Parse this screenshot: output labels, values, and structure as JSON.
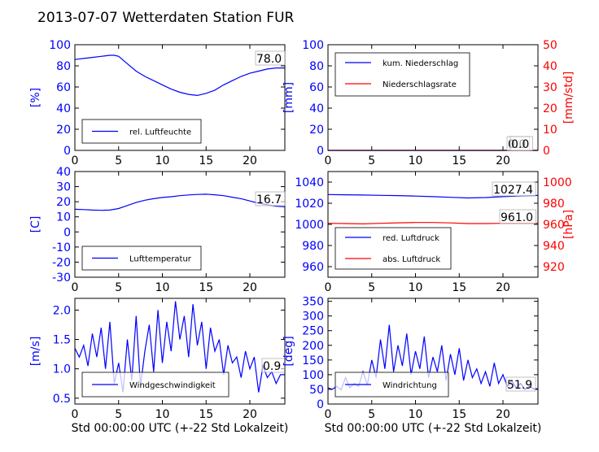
{
  "page_title": "2013-07-07 Wetterdaten Station FUR",
  "colors": {
    "primary": "#0000ff",
    "secondary": "#ff0000",
    "axis": "#000000"
  },
  "chart_data": [
    {
      "id": "humidity",
      "type": "line",
      "ylabel": "[%]",
      "xlabel": "",
      "xlim": [
        0,
        24
      ],
      "ylim": [
        0,
        100
      ],
      "yticks": [
        0,
        20,
        40,
        60,
        80,
        100
      ],
      "xticks": [
        0,
        5,
        10,
        15,
        20
      ],
      "grid": false,
      "legend_position": "bottom-left",
      "annotations": [
        "78.0"
      ],
      "series": [
        {
          "name": "rel. Luftfeuchte",
          "axis": "left",
          "color": "#0000ff",
          "x": [
            0,
            1,
            2,
            3,
            4,
            4.5,
            5,
            6,
            7,
            8,
            9,
            10,
            11,
            12,
            13,
            14,
            15,
            16,
            17,
            18,
            19,
            20,
            21,
            22,
            23,
            24
          ],
          "y": [
            86,
            87,
            88,
            89,
            90,
            90,
            89,
            82,
            75,
            70,
            66,
            62,
            58,
            55,
            53,
            52,
            54,
            57,
            62,
            66,
            70,
            73,
            75,
            77,
            78,
            78
          ]
        }
      ]
    },
    {
      "id": "precip",
      "type": "line",
      "ylabel": "[mm]",
      "ylabel_right": "[mm/std]",
      "xlabel": "",
      "xlim": [
        0,
        24
      ],
      "ylim": [
        0,
        100
      ],
      "ylim_right": [
        0,
        50
      ],
      "yticks": [
        0,
        20,
        40,
        60,
        80,
        100
      ],
      "yticks_right": [
        0,
        10,
        20,
        30,
        40,
        50
      ],
      "xticks": [
        0,
        5,
        10,
        15,
        20
      ],
      "grid": false,
      "legend_position": "top-left",
      "annotations": [
        "0.0",
        "0.0"
      ],
      "series": [
        {
          "name": "kum. Niederschlag",
          "axis": "left",
          "color": "#0000ff",
          "x": [
            0,
            24
          ],
          "y": [
            0,
            0
          ]
        },
        {
          "name": "Niederschlagsrate",
          "axis": "right",
          "color": "#ff0000",
          "x": [
            0,
            24
          ],
          "y": [
            0,
            0
          ]
        }
      ]
    },
    {
      "id": "temp",
      "type": "line",
      "ylabel": "[C]",
      "xlabel": "",
      "xlim": [
        0,
        24
      ],
      "ylim": [
        -30,
        40
      ],
      "yticks": [
        -30,
        -20,
        -10,
        0,
        10,
        20,
        30,
        40
      ],
      "xticks": [
        0,
        5,
        10,
        15,
        20
      ],
      "grid": false,
      "legend_position": "bottom-left",
      "annotations": [
        "16.7"
      ],
      "series": [
        {
          "name": "Lufttemperatur",
          "axis": "left",
          "color": "#0000ff",
          "x": [
            0,
            1,
            2,
            3,
            4,
            5,
            6,
            7,
            8,
            9,
            10,
            11,
            12,
            13,
            14,
            15,
            16,
            17,
            18,
            19,
            20,
            21,
            22,
            23,
            24
          ],
          "y": [
            15,
            14.8,
            14.5,
            14.3,
            14.5,
            15.5,
            17.5,
            19.5,
            21,
            22,
            22.8,
            23.3,
            24,
            24.5,
            24.8,
            25,
            24.6,
            24,
            23,
            22,
            20.5,
            19,
            18,
            17,
            16.7
          ]
        }
      ]
    },
    {
      "id": "pressure",
      "type": "line",
      "ylabel": "",
      "ylabel_right": "[hPa]",
      "xlabel": "",
      "xlim": [
        0,
        24
      ],
      "ylim": [
        950,
        1050
      ],
      "ylim_right": [
        910,
        1010
      ],
      "yticks": [
        960,
        980,
        1000,
        1020,
        1040
      ],
      "yticks_right": [
        920,
        940,
        960,
        980,
        1000
      ],
      "xticks": [
        0,
        5,
        10,
        15,
        20
      ],
      "grid": false,
      "legend_position": "bottom-left",
      "annotations": [
        "1027.4",
        "961.0"
      ],
      "series": [
        {
          "name": "red. Luftdruck",
          "axis": "left",
          "color": "#0000ff",
          "x": [
            0,
            2,
            4,
            6,
            8,
            10,
            12,
            14,
            16,
            18,
            20,
            22,
            24
          ],
          "y": [
            1028.2,
            1028,
            1027.8,
            1027.5,
            1027.2,
            1026.8,
            1026.2,
            1025.6,
            1025,
            1025.4,
            1026.2,
            1026.9,
            1027.4
          ]
        },
        {
          "name": "abs. Luftdruck",
          "axis": "right",
          "color": "#ff0000",
          "x": [
            0,
            2,
            4,
            6,
            8,
            10,
            12,
            14,
            16,
            18,
            20,
            22,
            24
          ],
          "y": [
            961,
            960.8,
            960.5,
            961,
            961.5,
            961.8,
            961.8,
            961.4,
            960.8,
            960.8,
            961,
            961,
            961
          ]
        }
      ]
    },
    {
      "id": "windspeed",
      "type": "line",
      "ylabel": "[m/s]",
      "xlabel": "Std 00:00:00 UTC (+-22 Std Lokalzeit)",
      "xlim": [
        0,
        24
      ],
      "ylim": [
        0.4,
        2.2
      ],
      "yticks": [
        0.5,
        1.0,
        1.5,
        2.0
      ],
      "ytick_labels": [
        "0.5",
        "1.0",
        "1.5",
        "2.0"
      ],
      "xticks": [
        0,
        5,
        10,
        15,
        20
      ],
      "grid": false,
      "legend_position": "bottom-left",
      "annotations": [
        "0.9"
      ],
      "series": [
        {
          "name": "Windgeschwindigkeit",
          "axis": "left",
          "color": "#0000ff",
          "x": [
            0,
            0.5,
            1,
            1.5,
            2,
            2.5,
            3,
            3.5,
            4,
            4.5,
            5,
            5.5,
            6,
            6.5,
            7,
            7.5,
            8,
            8.5,
            9,
            9.5,
            10,
            10.5,
            11,
            11.5,
            12,
            12.5,
            13,
            13.5,
            14,
            14.5,
            15,
            15.5,
            16,
            16.5,
            17,
            17.5,
            18,
            18.5,
            19,
            19.5,
            20,
            20.5,
            21,
            21.5,
            22,
            22.5,
            23,
            23.5,
            24
          ],
          "y": [
            1.35,
            1.2,
            1.4,
            1.05,
            1.6,
            1.2,
            1.7,
            1.0,
            1.8,
            0.75,
            1.1,
            0.6,
            1.5,
            0.8,
            1.9,
            0.7,
            1.3,
            1.75,
            0.95,
            2.0,
            1.1,
            1.8,
            1.3,
            2.15,
            1.5,
            1.9,
            1.2,
            2.1,
            1.4,
            1.8,
            1.0,
            1.7,
            1.3,
            1.5,
            0.9,
            1.4,
            1.1,
            1.2,
            0.85,
            1.3,
            1.0,
            1.2,
            0.6,
            1.05,
            0.85,
            0.95,
            0.75,
            0.9,
            0.9
          ]
        }
      ]
    },
    {
      "id": "winddir",
      "type": "line",
      "ylabel": "[deg]",
      "xlabel": "Std 00:00:00 UTC (+-22 Std Lokalzeit)",
      "xlim": [
        0,
        24
      ],
      "ylim": [
        0,
        360
      ],
      "yticks": [
        0,
        50,
        100,
        150,
        200,
        250,
        300,
        350
      ],
      "xticks": [
        0,
        5,
        10,
        15,
        20
      ],
      "grid": false,
      "legend_position": "bottom-left",
      "annotations": [
        "51.9"
      ],
      "series": [
        {
          "name": "Windrichtung",
          "axis": "left",
          "color": "#0000ff",
          "x": [
            0,
            0.5,
            1,
            1.5,
            2,
            2.5,
            3,
            3.5,
            4,
            4.5,
            5,
            5.5,
            6,
            6.5,
            7,
            7.5,
            8,
            8.5,
            9,
            9.5,
            10,
            10.5,
            11,
            11.5,
            12,
            12.5,
            13,
            13.5,
            14,
            14.5,
            15,
            15.5,
            16,
            16.5,
            17,
            17.5,
            18,
            18.5,
            19,
            19.5,
            20,
            20.5,
            21,
            21.5,
            22,
            22.5,
            23,
            23.5,
            24
          ],
          "y": [
            55,
            50,
            60,
            48,
            90,
            55,
            70,
            60,
            110,
            65,
            150,
            90,
            220,
            120,
            270,
            110,
            200,
            130,
            240,
            100,
            180,
            120,
            230,
            90,
            160,
            110,
            200,
            80,
            170,
            100,
            190,
            80,
            150,
            90,
            120,
            70,
            110,
            60,
            140,
            70,
            100,
            60,
            80,
            55,
            70,
            50,
            60,
            52,
            52
          ]
        }
      ]
    }
  ]
}
